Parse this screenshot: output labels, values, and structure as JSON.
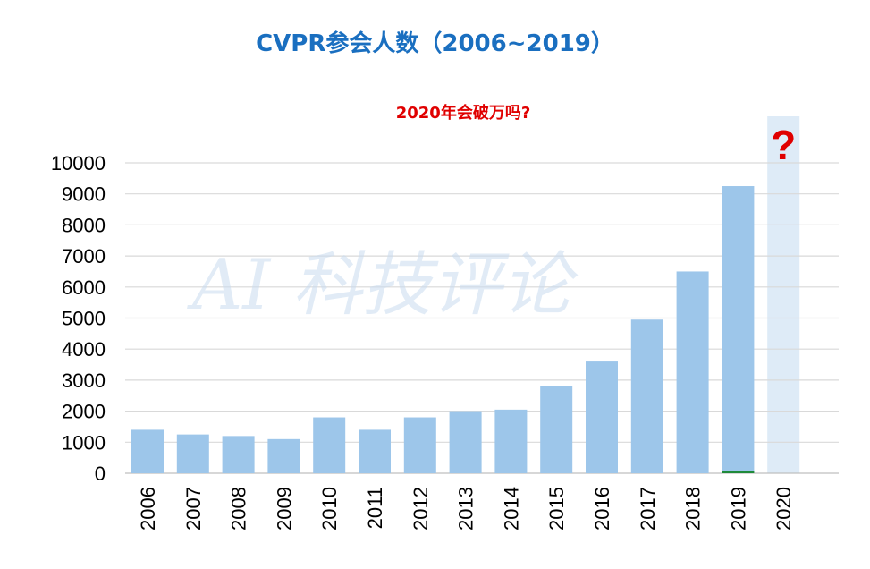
{
  "title": "CVPR参会人数（2006~2019）",
  "subtitle": "2020年会破万吗?",
  "question_mark": "?",
  "watermark": "AI 科技评论",
  "colors": {
    "bar": "#9dc6ea",
    "highlight": "#deebf7",
    "title": "#1a6fc0",
    "subtitle": "#e00000",
    "grid": "#d9d9d9",
    "baseline": "#1f8a3a"
  },
  "chart_data": {
    "type": "bar",
    "title": "CVPR参会人数（2006~2019）",
    "categories": [
      "2006",
      "2007",
      "2008",
      "2009",
      "2010",
      "2011",
      "2012",
      "2013",
      "2014",
      "2015",
      "2016",
      "2017",
      "2018",
      "2019",
      "2020"
    ],
    "values": [
      1400,
      1250,
      1200,
      1100,
      1800,
      1400,
      1800,
      2000,
      2050,
      2800,
      3600,
      4950,
      6500,
      9250,
      null
    ],
    "highlight_category": "2020",
    "yticks": [
      0,
      1000,
      2000,
      3000,
      4000,
      5000,
      6000,
      7000,
      8000,
      9000,
      10000
    ],
    "ylim": [
      0,
      10000
    ],
    "xlabel": "",
    "ylabel": "",
    "grid": true,
    "legend": false
  }
}
